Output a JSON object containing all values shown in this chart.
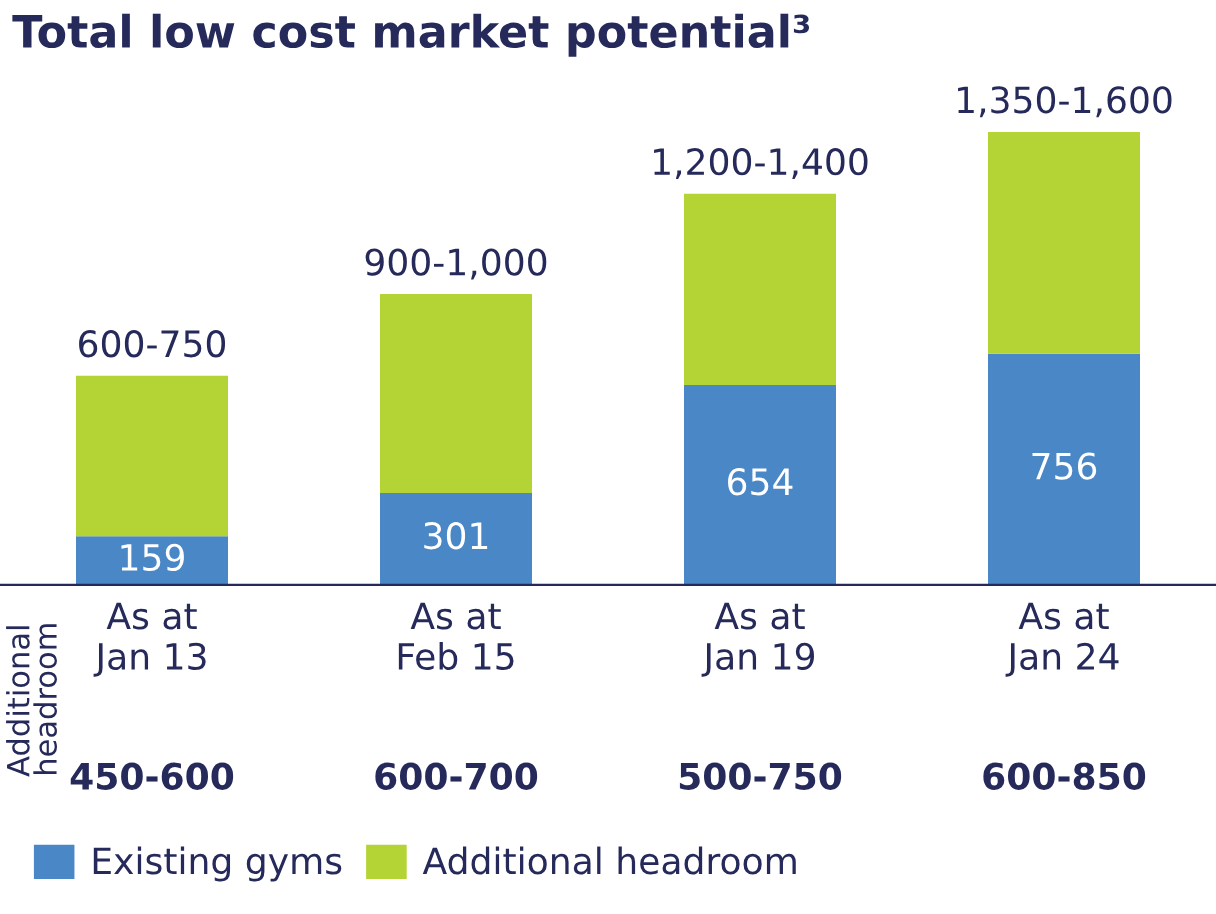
{
  "chart_data": {
    "type": "bar",
    "title": "Total low cost market potential³",
    "stacked": true,
    "categories": [
      "As at\nJan 13",
      "As at\nFeb 15",
      "As at\nJan 19",
      "As at\nJan 24"
    ],
    "series": [
      {
        "name": "Existing gyms",
        "color": "#4a87c7",
        "values": [
          159,
          301,
          654,
          756
        ],
        "value_labels": [
          "159",
          "301",
          "654",
          "756"
        ]
      },
      {
        "name": "Additional headroom",
        "color": "#b4d334",
        "values": [
          525,
          650,
          625,
          725
        ]
      }
    ],
    "totals": [
      "600-750",
      "900-1,000",
      "1,200-1,400",
      "1,350-1,600"
    ],
    "annotations": [
      "Additional\nheadroom",
      "450-600",
      "600-700",
      "500-750",
      "600-850"
    ],
    "legend": "bottom left",
    "grid": false
  }
}
